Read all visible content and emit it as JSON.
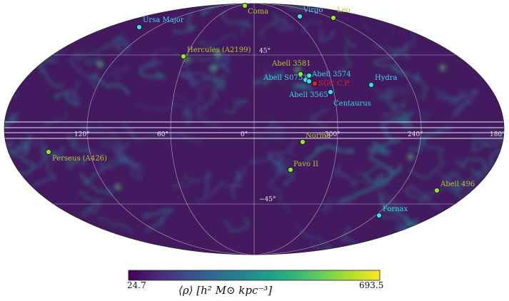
{
  "map": {
    "projection": "Mollweide",
    "colormap": "viridis",
    "lat_labels": [
      "45°",
      "−45°"
    ],
    "lon_labels": [
      "120°",
      "60°",
      "0°",
      "300°",
      "240°",
      "180°"
    ],
    "objects": [
      {
        "name": "Coma",
        "color": "#9be42c",
        "text_color": "#b4c82b"
      },
      {
        "name": "Virgo",
        "color": "#34e2e6",
        "text_color": "#3fd7e8"
      },
      {
        "name": "Leo",
        "color": "#9be42c",
        "text_color": "#b4c82b"
      },
      {
        "name": "Ursa Major",
        "color": "#34e2e6",
        "text_color": "#3fd7e8"
      },
      {
        "name": "Hercules (A2199)",
        "color": "#9be42c",
        "text_color": "#b4c82b"
      },
      {
        "name": "Abell 3581",
        "color": "#9be42c",
        "text_color": "#b4c82b"
      },
      {
        "name": "Abell S0753",
        "color": "#34e2e6",
        "text_color": "#3fd7e8"
      },
      {
        "name": "Abell 3574",
        "color": "#34e2e6",
        "text_color": "#3fd7e8"
      },
      {
        "name": "Hydra",
        "color": "#34e2e6",
        "text_color": "#3fd7e8"
      },
      {
        "name": "Abell 3565",
        "color": "#34e2e6",
        "text_color": "#3fd7e8"
      },
      {
        "name": "Centaurus",
        "color": "#34e2e6",
        "text_color": "#3fd7e8"
      },
      {
        "name": "Norma",
        "color": "#9be42c",
        "text_color": "#b4c82b"
      },
      {
        "name": "Perseus (A426)",
        "color": "#9be42c",
        "text_color": "#b4c82b"
      },
      {
        "name": "Pavo II",
        "color": "#9be42c",
        "text_color": "#b4c82b"
      },
      {
        "name": "Abell 496",
        "color": "#9be42c",
        "text_color": "#b4c82b"
      },
      {
        "name": "Fornax",
        "color": "#34e2e6",
        "text_color": "#3fd7e8"
      },
      {
        "name": "SGC C.P.",
        "color": "#e0202a",
        "text_color": "#e0202a"
      }
    ]
  },
  "colorbar": {
    "min": "24.7",
    "max": "693.5",
    "title": "⟨ρ⟩ [h² M⊙ kpc⁻³]",
    "stops": [
      "#440154",
      "#482878",
      "#3e4989",
      "#31688e",
      "#26828e",
      "#1f9e89",
      "#35b779",
      "#6ece58",
      "#b5de2b",
      "#fde725"
    ]
  }
}
